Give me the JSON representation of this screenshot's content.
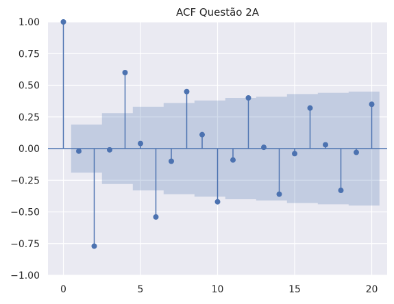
{
  "chart_data": {
    "type": "stem",
    "title": "ACF Questão 2A",
    "xlabel": "",
    "ylabel": "",
    "xlim": [
      -1,
      21
    ],
    "ylim": [
      -1.0,
      1.0
    ],
    "x_ticks": [
      0,
      5,
      10,
      15,
      20
    ],
    "x_tick_labels": [
      "0",
      "5",
      "10",
      "15",
      "20"
    ],
    "y_ticks": [
      1.0,
      0.75,
      0.5,
      0.25,
      0.0,
      -0.25,
      -0.5,
      -0.75,
      -1.0
    ],
    "y_tick_labels": [
      "1.00",
      "0.75",
      "0.50",
      "0.25",
      "0.00",
      "−0.25",
      "−0.50",
      "−0.75",
      "−1.00"
    ],
    "grid": true,
    "series": [
      {
        "x": [
          0,
          1,
          2,
          3,
          4,
          5,
          6,
          7,
          8,
          9,
          10,
          11,
          12,
          13,
          14,
          15,
          16,
          17,
          18,
          19,
          20
        ],
        "y": [
          1.0,
          -0.02,
          -0.77,
          -0.01,
          0.6,
          0.04,
          -0.54,
          -0.1,
          0.45,
          0.11,
          -0.42,
          -0.09,
          0.4,
          0.01,
          -0.36,
          -0.04,
          0.32,
          0.03,
          -0.33,
          -0.03,
          0.35
        ]
      }
    ],
    "confidence_band": {
      "x_start": 0.5,
      "x_end": 20.5,
      "upper": [
        0.19,
        0.19,
        0.28,
        0.28,
        0.33,
        0.33,
        0.36,
        0.36,
        0.38,
        0.38,
        0.4,
        0.4,
        0.41,
        0.41,
        0.43,
        0.43,
        0.44,
        0.44,
        0.45,
        0.45
      ]
    },
    "colors": {
      "background": "#eaeaf2",
      "grid": "#ffffff",
      "stem": "#4c72b0",
      "band": "#4c72b0"
    }
  }
}
